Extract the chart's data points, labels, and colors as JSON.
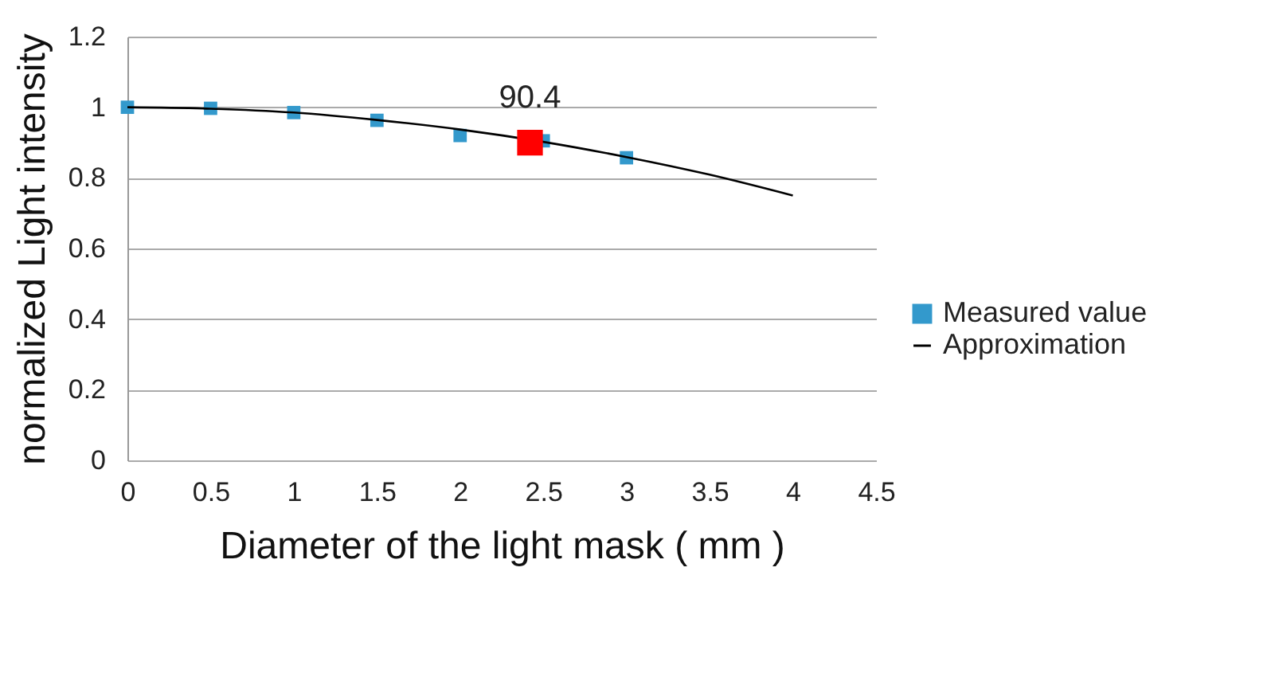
{
  "chart_data": {
    "type": "scatter",
    "xlabel": "Diameter of the light mask ( mm )",
    "ylabel": "normalized Light intensity",
    "xlim": [
      0,
      4.5
    ],
    "xticks": [
      0,
      0.5,
      1,
      1.5,
      2,
      2.5,
      3,
      3.5,
      4,
      4.5
    ],
    "ylim": [
      0,
      1.2
    ],
    "yticks": [
      0,
      0.2,
      0.4,
      0.6,
      0.8,
      1,
      1.2
    ],
    "grid": "y",
    "legend": "right",
    "marker": "square",
    "annotations": [
      {
        "text": "90.4",
        "x": 2.42,
        "y": 0.9
      }
    ],
    "series": [
      {
        "name": "Measured value",
        "type": "scatter",
        "color": "#3399cc",
        "x": [
          0,
          0.5,
          1,
          1.5,
          2,
          2.5,
          3
        ],
        "values": [
          1,
          0.997,
          0.985,
          0.963,
          0.92,
          0.905,
          0.857
        ]
      },
      {
        "name": "Approximation",
        "type": "line",
        "color": "#000000",
        "marker": "none",
        "x": [
          0,
          0.5,
          1,
          1.5,
          2,
          2.5,
          3,
          3.5,
          4
        ],
        "values": [
          1,
          0.996,
          0.985,
          0.964,
          0.937,
          0.902,
          0.859,
          0.809,
          0.75
        ]
      },
      {
        "color": "#ff0000",
        "x": [
          2.42
        ],
        "values": [
          0.9
        ]
      }
    ]
  }
}
